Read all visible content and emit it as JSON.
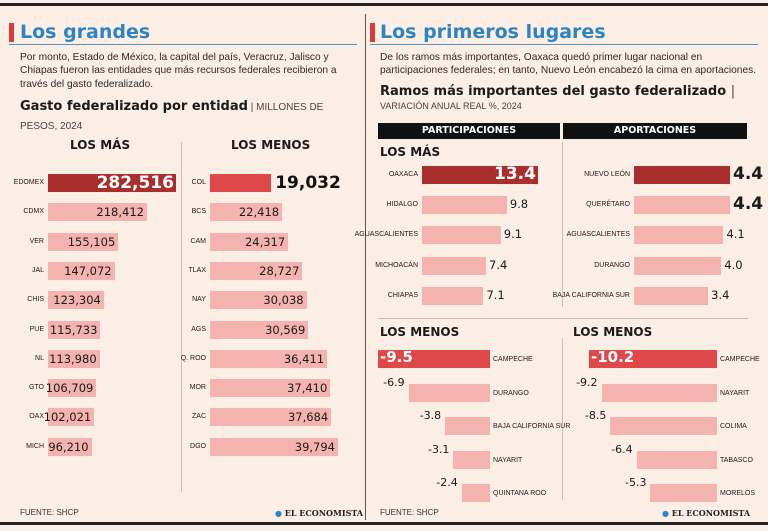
{
  "left": {
    "title": "Los grandes",
    "intro": "Por monto, Estado de México, la capital del país, Veracruz, Jalisco y Chiapas fueron las entidades que más recursos federales recibieron a través del gasto federalizado.",
    "subhead": "Gasto federalizado por entidad",
    "units": " | MILLONES DE PESOS, 2024",
    "los_mas_header": "LOS MÁS",
    "los_menos_header": "LOS MENOS",
    "footer": "FUENTE: SHCP"
  },
  "right": {
    "title": "Los primeros lugares",
    "intro": "De los ramos más importantes, Oaxaca quedó primer lugar nacional en participaciones federales; en tanto, Nuevo León encabezó la cima en aportaciones.",
    "subhead": "Ramos más importantes del gasto federalizado",
    "units": "VARIACIÓN ANUAL REAL %, 2024",
    "col_participaciones": "PARTICIPACIONES",
    "col_aportaciones": "APORTACIONES",
    "los_mas_header": "LOS MÁS",
    "los_menos_header_1": "LOS MENOS",
    "los_menos_header_2": "LOS MENOS",
    "footer": "FUENTE: SHCP"
  },
  "logo_text": "EL ECONOMISTA",
  "logo_text_2": "EL ECONOMISTA",
  "colors": {
    "dark_red": "#a92f2f",
    "red": "#de4848",
    "pink": "#f5b3b0",
    "blue": "#2e83c5"
  },
  "chart_data": [
    {
      "type": "bar",
      "title": "LOS MÁS",
      "categories": [
        "EDOMEX",
        "CDMX",
        "VER",
        "JAL",
        "CHIS",
        "PUE",
        "NL",
        "GTO",
        "OAX",
        "MICH"
      ],
      "values": [
        282516,
        218412,
        155105,
        147072,
        123304,
        115733,
        113980,
        106709,
        102021,
        96210
      ],
      "labels": [
        "282,516",
        "218,412",
        "155,105",
        "147,072",
        "123,304",
        "115,733",
        "113,980",
        "106,709",
        "102,021",
        "96,210"
      ]
    },
    {
      "type": "bar",
      "title": "LOS MENOS",
      "categories": [
        "COL",
        "BCS",
        "CAM",
        "TLAX",
        "NAY",
        "AGS",
        "Q. ROO",
        "MOR",
        "ZAC",
        "DGO"
      ],
      "values": [
        19032,
        22418,
        24317,
        28727,
        30038,
        30569,
        36411,
        37410,
        37684,
        39794
      ],
      "labels": [
        "19,032",
        "22,418",
        "24,317",
        "28,727",
        "30,038",
        "30,569",
        "36,411",
        "37,410",
        "37,684",
        "39,794"
      ]
    },
    {
      "type": "bar",
      "title": "PARTICIPACIONES — LOS MÁS",
      "categories": [
        "OAXACA",
        "HIDALGO",
        "AGUASCALIENTES",
        "MICHOACÁN",
        "CHIAPAS"
      ],
      "values": [
        13.4,
        9.8,
        9.1,
        7.4,
        7.1
      ],
      "labels": [
        "13.4",
        "9.8",
        "9.1",
        "7.4",
        "7.1"
      ]
    },
    {
      "type": "bar",
      "title": "APORTACIONES — LOS MÁS",
      "categories": [
        "NUEVO LEÓN",
        "QUERÉTARO",
        "AGUASCALIENTES",
        "DURANGO",
        "BAJA CALIFORNIA SUR"
      ],
      "values": [
        4.4,
        4.4,
        4.1,
        4.0,
        3.4
      ],
      "labels": [
        "4.4",
        "4.4",
        "4.1",
        "4.0",
        "3.4"
      ]
    },
    {
      "type": "bar",
      "title": "PARTICIPACIONES — LOS MENOS",
      "categories": [
        "CAMPECHE",
        "DURANGO",
        "BAJA CALIFORNIA SUR",
        "NAYARIT",
        "QUINTANA ROO"
      ],
      "values": [
        -9.5,
        -6.9,
        -3.8,
        -3.1,
        -2.4
      ],
      "labels": [
        "-9.5",
        "-6.9",
        "-3.8",
        "-3.1",
        "-2.4"
      ]
    },
    {
      "type": "bar",
      "title": "APORTACIONES — LOS MENOS",
      "categories": [
        "CAMPECHE",
        "NAYARIT",
        "COLIMA",
        "TABASCO",
        "MORELOS"
      ],
      "values": [
        -10.2,
        -9.2,
        -8.5,
        -6.4,
        -5.3
      ],
      "labels": [
        "-10.2",
        "-9.2",
        "-8.5",
        "-6.4",
        "-5.3"
      ]
    }
  ]
}
